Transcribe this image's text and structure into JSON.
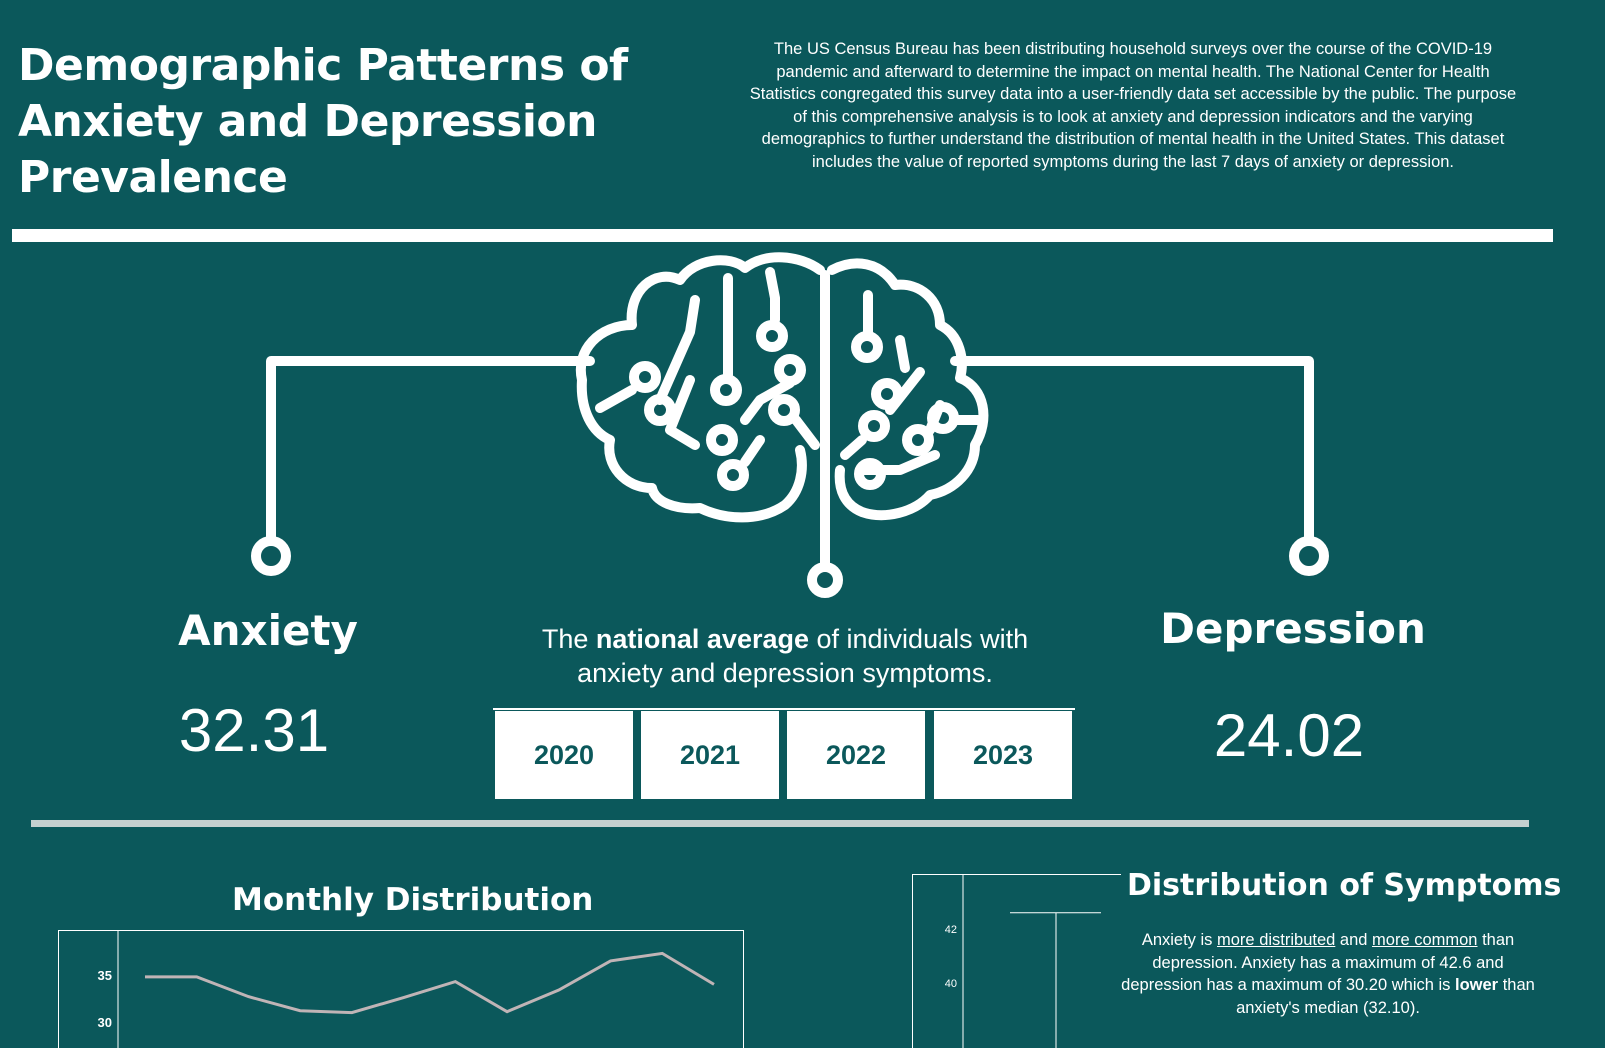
{
  "header": {
    "title_lines": [
      "Demographic Patterns of",
      "Anxiety and Depression",
      "Prevalence"
    ],
    "intro": "The US Census Bureau has been distributing household surveys over the course of the COVID-19 pandemic and afterward to determine the impact on mental health. The National Center for Health Statistics congregated this survey data into a user-friendly data set accessible by the public. The purpose of this comprehensive analysis is to look at anxiety and depression indicators and the varying demographics to further understand the distribution of mental health in the United States. This dataset includes the value of reported symptoms during the last 7 days of anxiety or depression."
  },
  "icons": {
    "brain": "brain-circuit-icon"
  },
  "anxiety": {
    "label": "Anxiety",
    "value": "32.31"
  },
  "depression": {
    "label": "Depression",
    "value": "24.02"
  },
  "national_average": {
    "prefix": "The ",
    "bold": "national average",
    "suffix": " of individuals with anxiety and depression symptoms."
  },
  "year_filters": [
    "2020",
    "2021",
    "2022",
    "2023"
  ],
  "monthly": {
    "title": "Monthly Distribution"
  },
  "distribution": {
    "title": "Distribution of Symptoms",
    "text_parts": {
      "p1": "Anxiety is ",
      "u1": "more distributed",
      "p2": " and ",
      "u2": "more common",
      "p3": " than depression. Anxiety has a maximum of 42.6 and depression has a maximum of 30.20 which is ",
      "b1": "lower",
      "p4": " than anxiety's median (32.10)."
    }
  },
  "colors": {
    "background": "#0b585b",
    "foreground": "#ffffff",
    "line": "#c0b4b6",
    "divider": "#c5d0cf"
  },
  "chart_data": [
    {
      "type": "line",
      "title": "Monthly Distribution",
      "y_ticks": [
        "35",
        "30"
      ],
      "visible_ylim": [
        29.5,
        37.5
      ],
      "series": [
        {
          "values": [
            34.8,
            34.8,
            32.7,
            31.2,
            31.0,
            32.6,
            34.3,
            31.1,
            33.4,
            36.5,
            37.3,
            34.0
          ]
        }
      ]
    },
    {
      "type": "box",
      "title": "Distribution of Symptoms",
      "y_ticks": [
        "42",
        "40"
      ],
      "visible_ylim": [
        38.5,
        43
      ],
      "series": [
        {
          "max": 42.6
        }
      ]
    }
  ]
}
